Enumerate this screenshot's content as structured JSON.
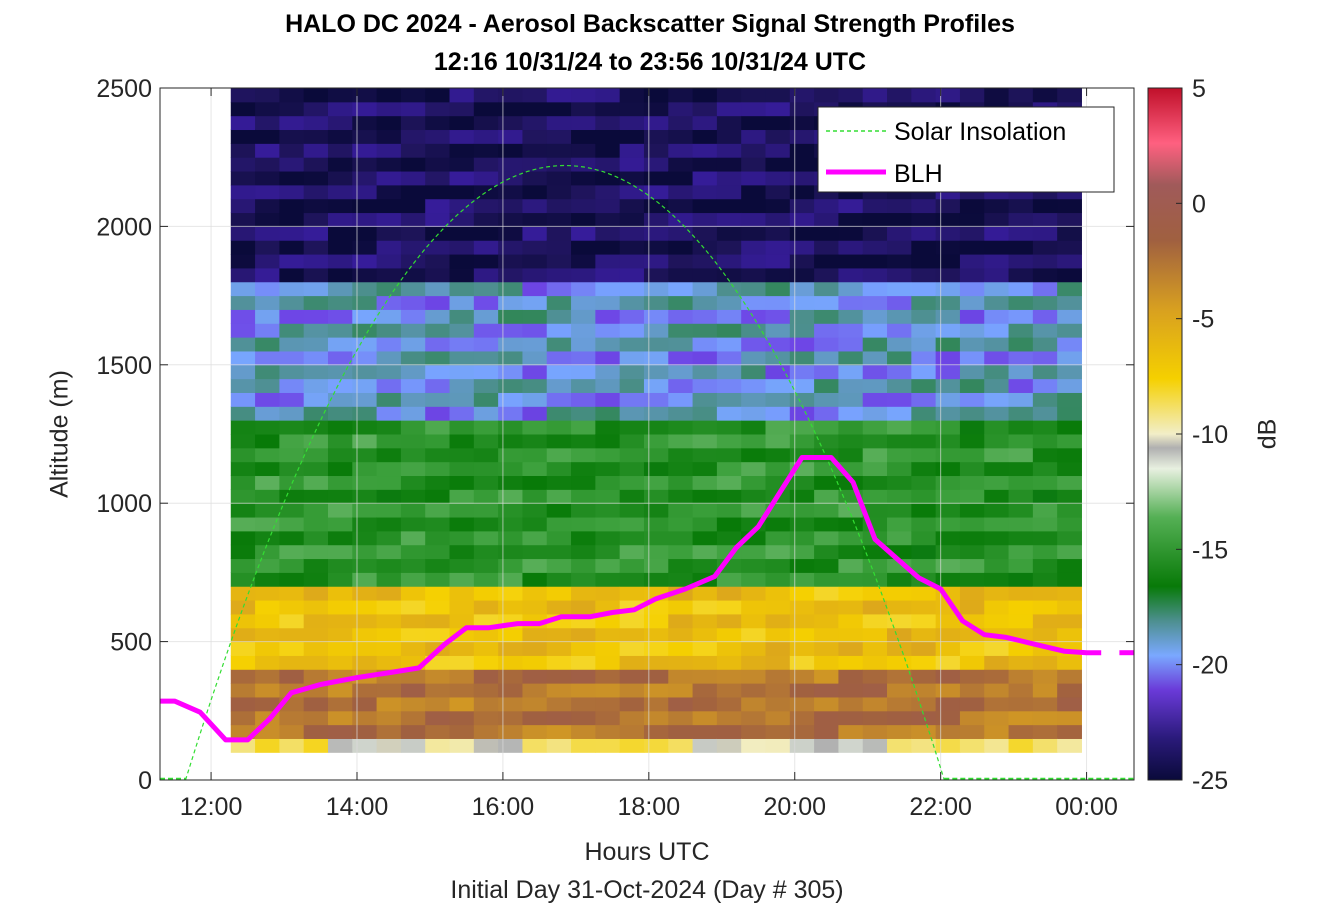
{
  "title_line1": "HALO DC 2024 - Aerosol Backscatter Signal Strength Profiles",
  "title_line2": "12:16 10/31/24 to 23:56 10/31/24  UTC",
  "xlabel": "Hours UTC",
  "subnote": "Initial Day 31-Oct-2024 (Day # 305)",
  "ylabel": "Altitude (m)",
  "colorbar_label": "dB",
  "colors": {
    "solar": "#33dd33",
    "blh": "#ff00ff",
    "plot_border": "#262626"
  },
  "chart_data": {
    "type": "heatmap",
    "x_unit": "hours UTC (values past 24 are after midnight)",
    "xlim": [
      11.3,
      24.65
    ],
    "ylim": [
      0,
      2500
    ],
    "x_ticks": [
      12,
      14,
      16,
      18,
      20,
      22,
      24
    ],
    "x_tick_labels": [
      "12:00",
      "14:00",
      "16:00",
      "18:00",
      "20:00",
      "22:00",
      "00:00"
    ],
    "y_ticks": [
      0,
      500,
      1000,
      1500,
      2000,
      2500
    ],
    "y_tick_labels": [
      "0",
      "500",
      "1000",
      "1500",
      "2000",
      "2500"
    ],
    "grid": true,
    "legend_position": "top-right",
    "legend": [
      "Solar Insolation",
      "BLH"
    ],
    "colorbar": {
      "range": [
        -25,
        5
      ],
      "ticks": [
        5,
        0,
        -5,
        -10,
        -15,
        -20,
        -25
      ],
      "tick_labels": [
        "5",
        "0",
        "-5",
        "-10",
        "-15",
        "-20",
        "-25"
      ]
    },
    "heatmap": {
      "x_start": 12.27,
      "x_end": 23.93,
      "columns": 35,
      "altitude_bands_m": [
        {
          "from": 100,
          "to": 140,
          "db": -9
        },
        {
          "from": 140,
          "to": 400,
          "db": -2
        },
        {
          "from": 400,
          "to": 700,
          "db": -6
        },
        {
          "from": 700,
          "to": 1300,
          "db": -15
        },
        {
          "from": 1300,
          "to": 1800,
          "db": -19
        },
        {
          "from": 1800,
          "to": 2500,
          "db": -24
        }
      ]
    },
    "series": [
      {
        "name": "BLH",
        "x": [
          11.3,
          11.5,
          11.85,
          12.2,
          12.5,
          12.8,
          13.1,
          13.5,
          14.0,
          14.5,
          14.85,
          15.2,
          15.5,
          15.8,
          16.2,
          16.5,
          16.8,
          17.2,
          17.5,
          17.8,
          18.1,
          18.5,
          18.9,
          19.2,
          19.5,
          19.8,
          20.1,
          20.5,
          20.8,
          21.1,
          21.4,
          21.7,
          22.0,
          22.3,
          22.6,
          22.9,
          23.3,
          23.7,
          24.0,
          24.2
        ],
        "y": [
          285,
          285,
          245,
          145,
          145,
          220,
          315,
          345,
          370,
          390,
          405,
          490,
          550,
          550,
          565,
          565,
          590,
          590,
          605,
          615,
          655,
          690,
          735,
          840,
          915,
          1040,
          1165,
          1165,
          1075,
          870,
          800,
          730,
          690,
          575,
          525,
          515,
          490,
          465,
          460,
          460
        ]
      },
      {
        "name": "BLH",
        "x": [
          24.45,
          24.65
        ],
        "y": [
          460,
          460
        ]
      },
      {
        "name": "Solar Insolation",
        "curve": "parabola",
        "x_start": 11.65,
        "x_peak": 16.85,
        "x_end": 22.05,
        "y_peak": 2220,
        "baseline_x": [
          11.3,
          24.65
        ],
        "baseline_y": 0
      }
    ]
  }
}
